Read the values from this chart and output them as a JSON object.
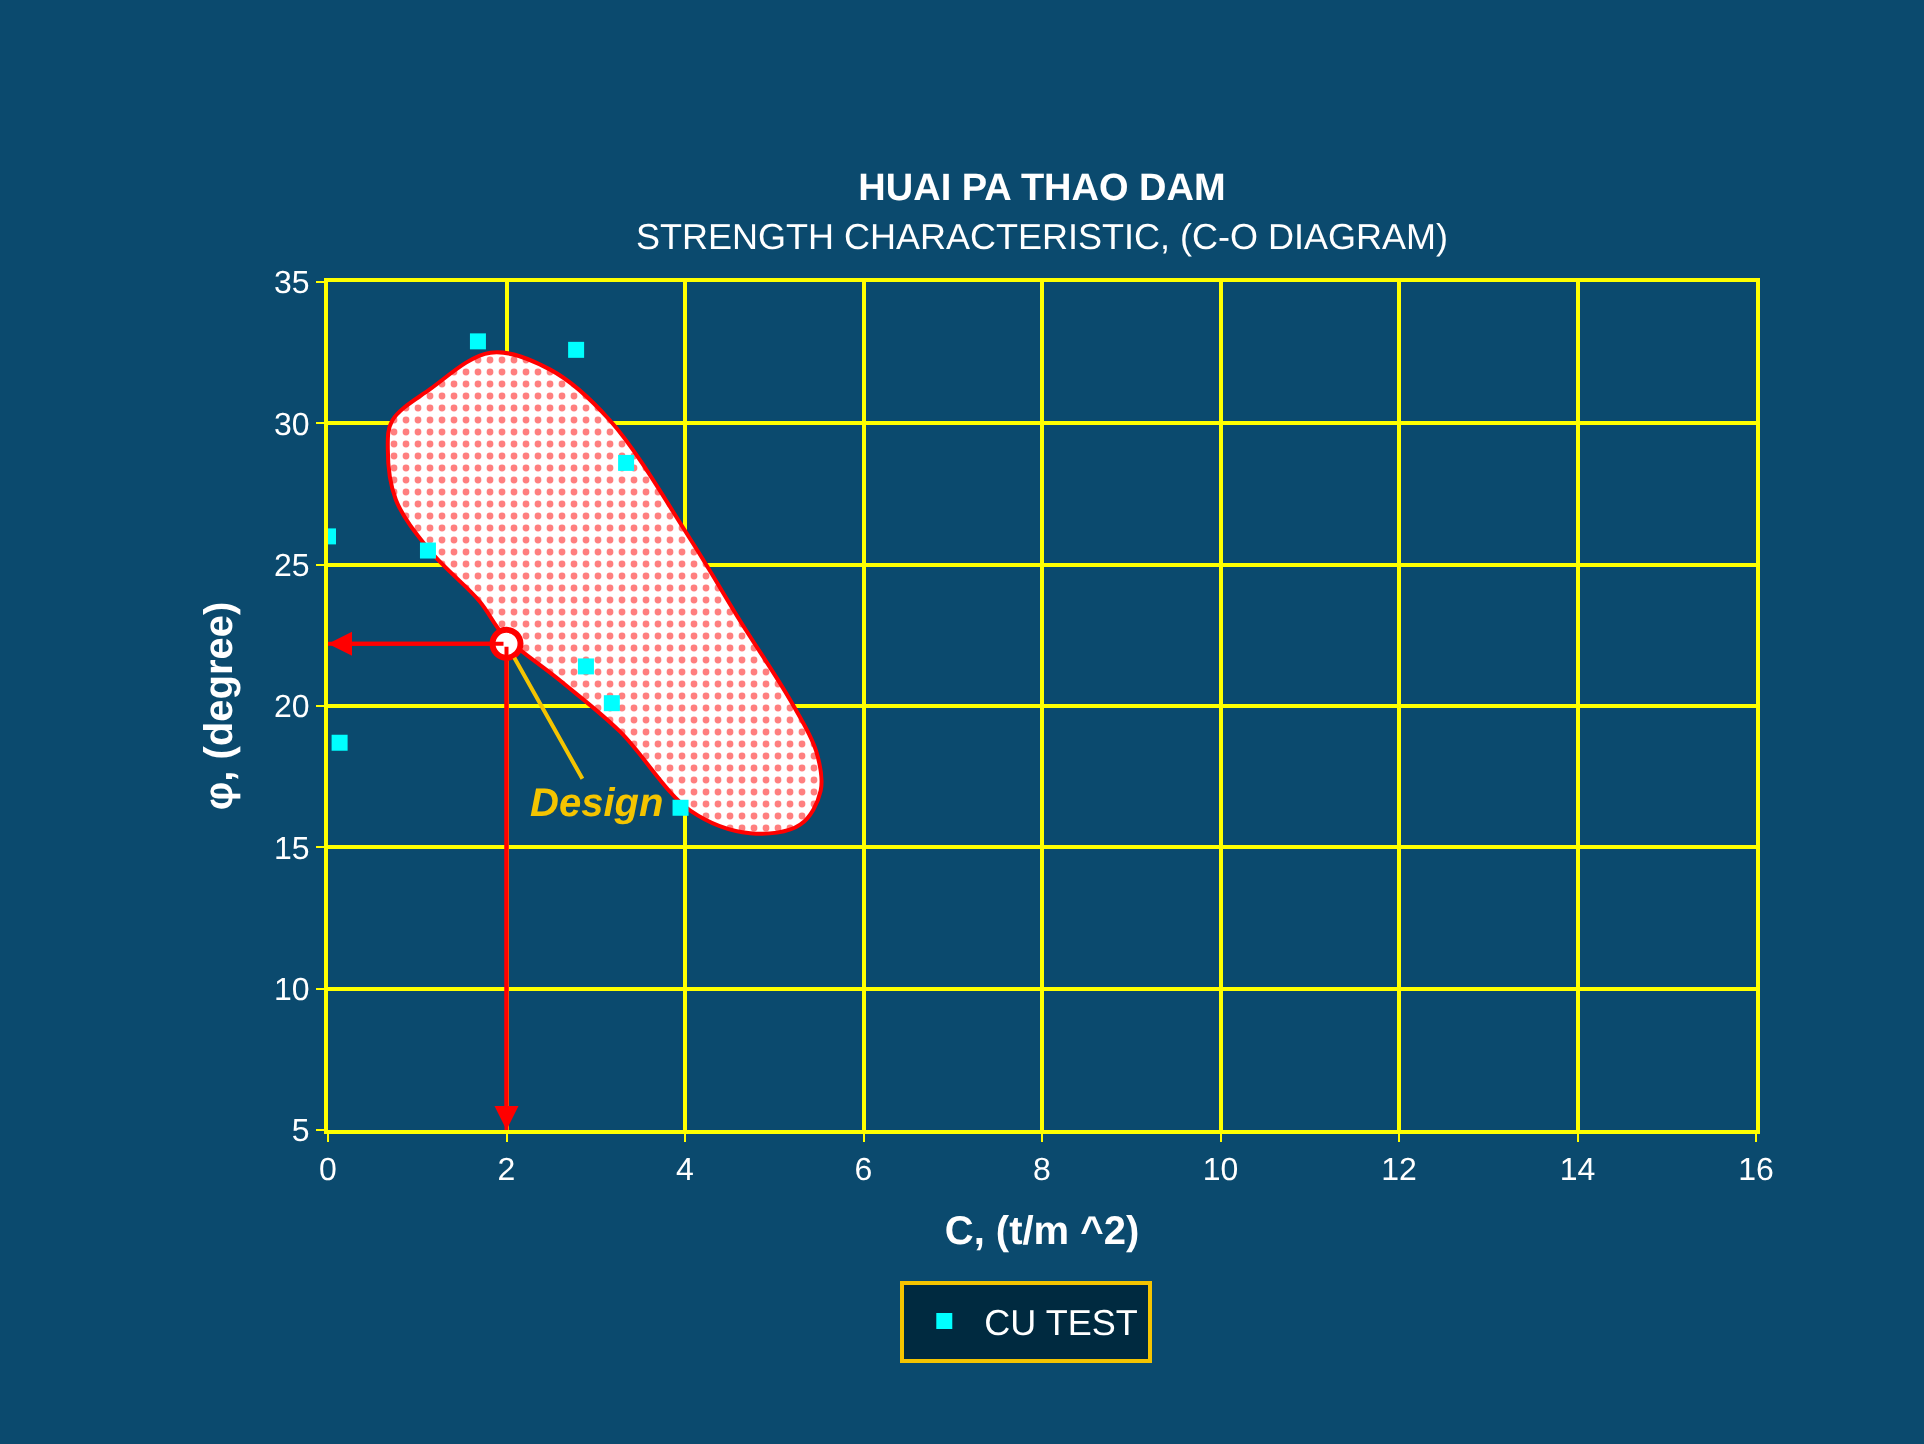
{
  "chart_data": {
    "type": "scatter",
    "title": "HUAI PA THAO DAM",
    "subtitle": "STRENGTH CHARACTERISTIC, (C-O DIAGRAM)",
    "xlabel": "C, (t/m ^2)",
    "ylabel": "φ, (degree)",
    "xlim": [
      0,
      16
    ],
    "xticks": [
      0,
      2,
      4,
      6,
      8,
      10,
      12,
      14,
      16
    ],
    "ylim": [
      5,
      35
    ],
    "yticks": [
      5,
      10,
      15,
      20,
      25,
      30,
      35
    ],
    "grid": true,
    "legend": "bottom",
    "marker": "square",
    "series": [
      {
        "type": "area",
        "color": "#ff0000",
        "marker": "none",
        "x": [
          1.82,
          1.14,
          0.72,
          0.67,
          0.76,
          1.14,
          1.7,
          1.97,
          2.6,
          3.27,
          4.06,
          4.73,
          5.29,
          5.52,
          5.47,
          5.18,
          4.62,
          4.06,
          3.16,
          2.49,
          1.82
        ],
        "values": [
          32.5,
          31.2,
          30.1,
          29.1,
          27.3,
          25.5,
          23.7,
          22.5,
          20.9,
          19.1,
          16.3,
          15.5,
          15.8,
          17.0,
          18.4,
          20.2,
          23.0,
          25.9,
          30.1,
          31.9,
          32.5
        ]
      },
      {
        "type": "line",
        "color": "#ff0000",
        "marker": "none",
        "x": [
          0,
          2,
          2
        ],
        "values": [
          22.2,
          22.2,
          5
        ]
      },
      {
        "color": "#ff0000",
        "marker": "circle",
        "x": [
          2
        ],
        "values": [
          22.2
        ]
      },
      {
        "name": "CU TEST",
        "color": "#00ffff",
        "x": [
          0,
          0.13,
          1.12,
          1.68,
          2.78,
          3.34,
          2.89,
          3.18,
          3.95
        ],
        "values": [
          26,
          18.7,
          25.5,
          32.9,
          32.6,
          28.6,
          21.4,
          20.1,
          16.4
        ]
      }
    ],
    "annotations": [
      {
        "text": "Design",
        "x": 2,
        "y": 22.2
      }
    ]
  }
}
